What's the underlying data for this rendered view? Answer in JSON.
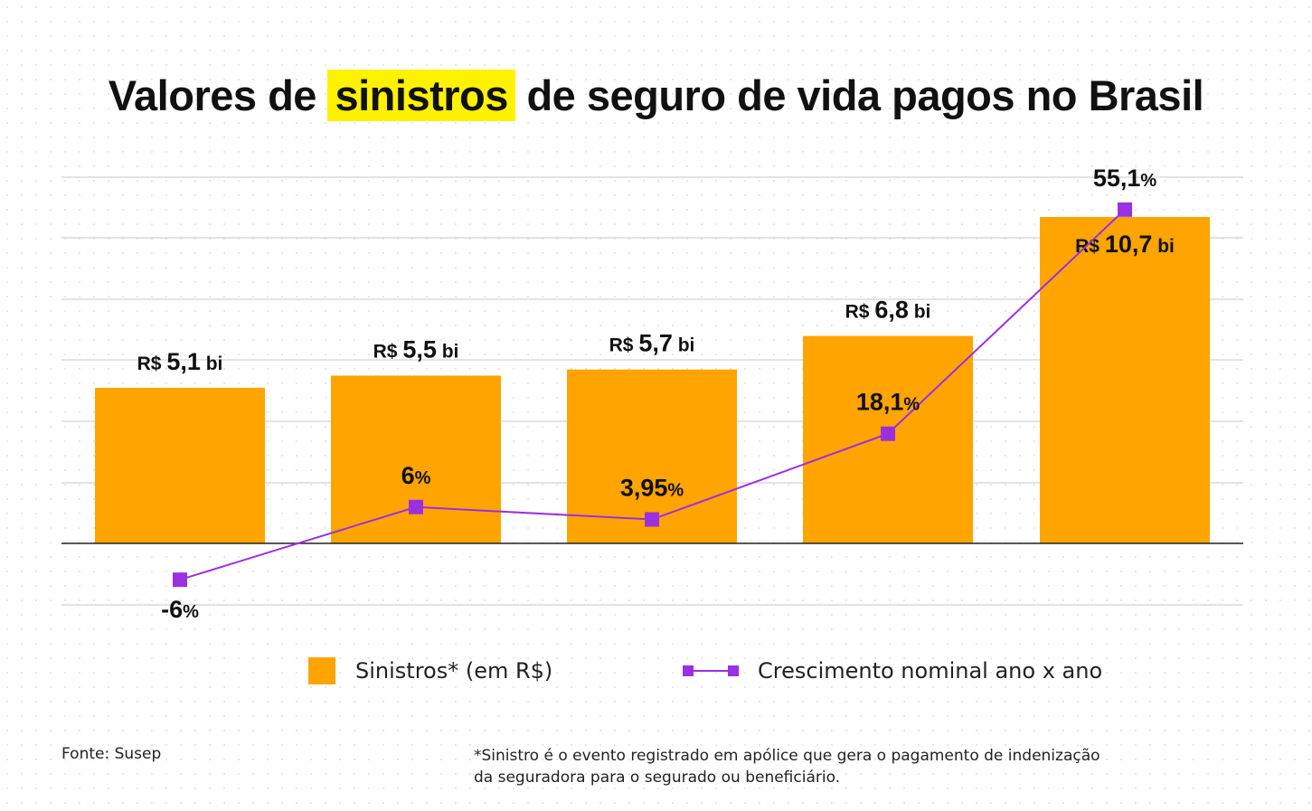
{
  "title": {
    "before": "Valores de ",
    "highlight": "sinistros",
    "after": " de seguro de vida pagos no Brasil"
  },
  "colors": {
    "bar": "#ffa400",
    "line": "#9b30e0",
    "highlight": "#fff200",
    "grid": "#c8c8c8",
    "zero_line": "#222222"
  },
  "chart_data": {
    "type": "bar",
    "grid": true,
    "series": [
      {
        "name": "Sinistros* (em R$)",
        "type": "bar",
        "unit": "R$ bi",
        "values": [
          5.1,
          5.5,
          5.7,
          6.8,
          10.7
        ],
        "labels": [
          {
            "prefix": "R$ ",
            "value": "5,1",
            "suffix": " bi"
          },
          {
            "prefix": "R$ ",
            "value": "5,5",
            "suffix": " bi"
          },
          {
            "prefix": "R$ ",
            "value": "5,7",
            "suffix": " bi"
          },
          {
            "prefix": "R$ ",
            "value": "6,8",
            "suffix": " bi"
          },
          {
            "prefix": "R$ ",
            "value": "10,7",
            "suffix": " bi"
          }
        ]
      },
      {
        "name": "Crescimento nominal ano x ano",
        "type": "line",
        "unit": "%",
        "values": [
          -6,
          6,
          3.95,
          18.1,
          55.1
        ],
        "labels": [
          {
            "value": "-6",
            "suffix": "%"
          },
          {
            "value": "6",
            "suffix": "%"
          },
          {
            "value": "3,95",
            "suffix": "%"
          },
          {
            "value": "18,1",
            "suffix": "%"
          },
          {
            "value": "55,1",
            "suffix": "%"
          }
        ]
      }
    ]
  },
  "legend": {
    "bar_label": "Sinistros* (em R$)",
    "line_label": "Crescimento nominal ano x ano"
  },
  "footer": {
    "source": "Fonte: Susep",
    "note_line1": "*Sinistro é o evento registrado em apólice que gera o pagamento de indenização",
    "note_line2": "da seguradora para o segurado ou beneficiário."
  }
}
